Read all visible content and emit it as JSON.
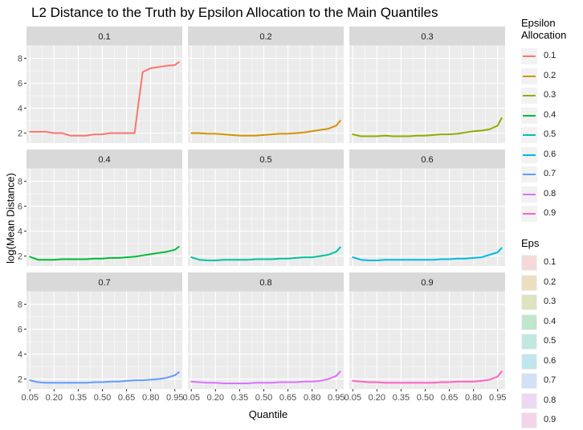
{
  "chart_data": {
    "type": "line",
    "title": "L2 Distance to the Truth by Epsilon Allocation to the Main Quantiles",
    "xlabel": "Quantile",
    "ylabel": "log(Mean Distance)",
    "x": [
      0.05,
      0.1,
      0.15,
      0.2,
      0.25,
      0.3,
      0.35,
      0.4,
      0.45,
      0.5,
      0.55,
      0.6,
      0.65,
      0.7,
      0.75,
      0.8,
      0.85,
      0.9,
      0.95,
      0.975
    ],
    "xticks": [
      "0.05",
      "0.20",
      "0.35",
      "0.50",
      "0.65",
      "0.80",
      "0.95"
    ],
    "xtick_values": [
      0.05,
      0.2,
      0.35,
      0.5,
      0.65,
      0.8,
      0.95
    ],
    "xlim": [
      0.0288,
      0.9962
    ],
    "ylim": [
      1.2,
      9.0
    ],
    "yticks": [
      2,
      4,
      6,
      8
    ],
    "grid": true,
    "legend_position": "right",
    "facets": [
      "0.1",
      "0.2",
      "0.3",
      "0.4",
      "0.5",
      "0.6",
      "0.7",
      "0.8",
      "0.9"
    ],
    "series": [
      {
        "name": "0.1",
        "color": "#F8766D",
        "values": [
          2.1,
          2.1,
          2.1,
          2.0,
          2.0,
          1.8,
          1.8,
          1.8,
          1.9,
          1.9,
          2.0,
          2.0,
          2.0,
          2.0,
          6.9,
          7.2,
          7.3,
          7.4,
          7.45,
          7.7
        ]
      },
      {
        "name": "0.2",
        "color": "#D39200",
        "values": [
          2.0,
          2.0,
          1.95,
          1.95,
          1.9,
          1.85,
          1.8,
          1.8,
          1.8,
          1.85,
          1.9,
          1.95,
          1.95,
          2.0,
          2.05,
          2.15,
          2.25,
          2.35,
          2.6,
          3.0
        ]
      },
      {
        "name": "0.3",
        "color": "#93AA00",
        "values": [
          1.9,
          1.75,
          1.75,
          1.75,
          1.8,
          1.75,
          1.75,
          1.75,
          1.8,
          1.8,
          1.85,
          1.9,
          1.9,
          1.95,
          2.05,
          2.15,
          2.2,
          2.3,
          2.6,
          3.2
        ]
      },
      {
        "name": "0.4",
        "color": "#00BA38",
        "values": [
          1.95,
          1.7,
          1.7,
          1.7,
          1.75,
          1.75,
          1.75,
          1.75,
          1.8,
          1.8,
          1.85,
          1.85,
          1.9,
          1.95,
          2.05,
          2.15,
          2.25,
          2.35,
          2.5,
          2.75
        ]
      },
      {
        "name": "0.5",
        "color": "#00C19F",
        "values": [
          1.9,
          1.7,
          1.65,
          1.65,
          1.7,
          1.7,
          1.7,
          1.7,
          1.75,
          1.75,
          1.75,
          1.8,
          1.8,
          1.85,
          1.9,
          1.9,
          2.0,
          2.1,
          2.35,
          2.7
        ]
      },
      {
        "name": "0.6",
        "color": "#00B9E3",
        "values": [
          1.9,
          1.7,
          1.65,
          1.65,
          1.7,
          1.7,
          1.7,
          1.7,
          1.7,
          1.7,
          1.7,
          1.75,
          1.75,
          1.8,
          1.8,
          1.85,
          1.9,
          2.1,
          2.3,
          2.65
        ]
      },
      {
        "name": "0.7",
        "color": "#619CFF",
        "values": [
          1.9,
          1.75,
          1.7,
          1.7,
          1.7,
          1.7,
          1.7,
          1.7,
          1.75,
          1.75,
          1.8,
          1.8,
          1.85,
          1.9,
          1.9,
          1.95,
          2.0,
          2.1,
          2.3,
          2.55
        ]
      },
      {
        "name": "0.8",
        "color": "#DB72FB",
        "values": [
          1.8,
          1.75,
          1.7,
          1.7,
          1.65,
          1.65,
          1.65,
          1.65,
          1.7,
          1.7,
          1.7,
          1.75,
          1.75,
          1.75,
          1.8,
          1.8,
          1.85,
          2.0,
          2.25,
          2.6
        ]
      },
      {
        "name": "0.9",
        "color": "#FF61C3",
        "values": [
          1.85,
          1.8,
          1.75,
          1.75,
          1.7,
          1.7,
          1.7,
          1.7,
          1.7,
          1.7,
          1.7,
          1.75,
          1.75,
          1.8,
          1.8,
          1.8,
          1.85,
          1.95,
          2.2,
          2.6
        ]
      }
    ],
    "legends": [
      {
        "title": "Epsilon\nAllocation",
        "kind": "line",
        "items": [
          "0.1",
          "0.2",
          "0.3",
          "0.4",
          "0.5",
          "0.6",
          "0.7",
          "0.8",
          "0.9"
        ]
      },
      {
        "title": "Eps",
        "kind": "fill",
        "items": [
          "0.1",
          "0.2",
          "0.3",
          "0.4",
          "0.5",
          "0.6",
          "0.7",
          "0.8",
          "0.9"
        ]
      }
    ]
  }
}
